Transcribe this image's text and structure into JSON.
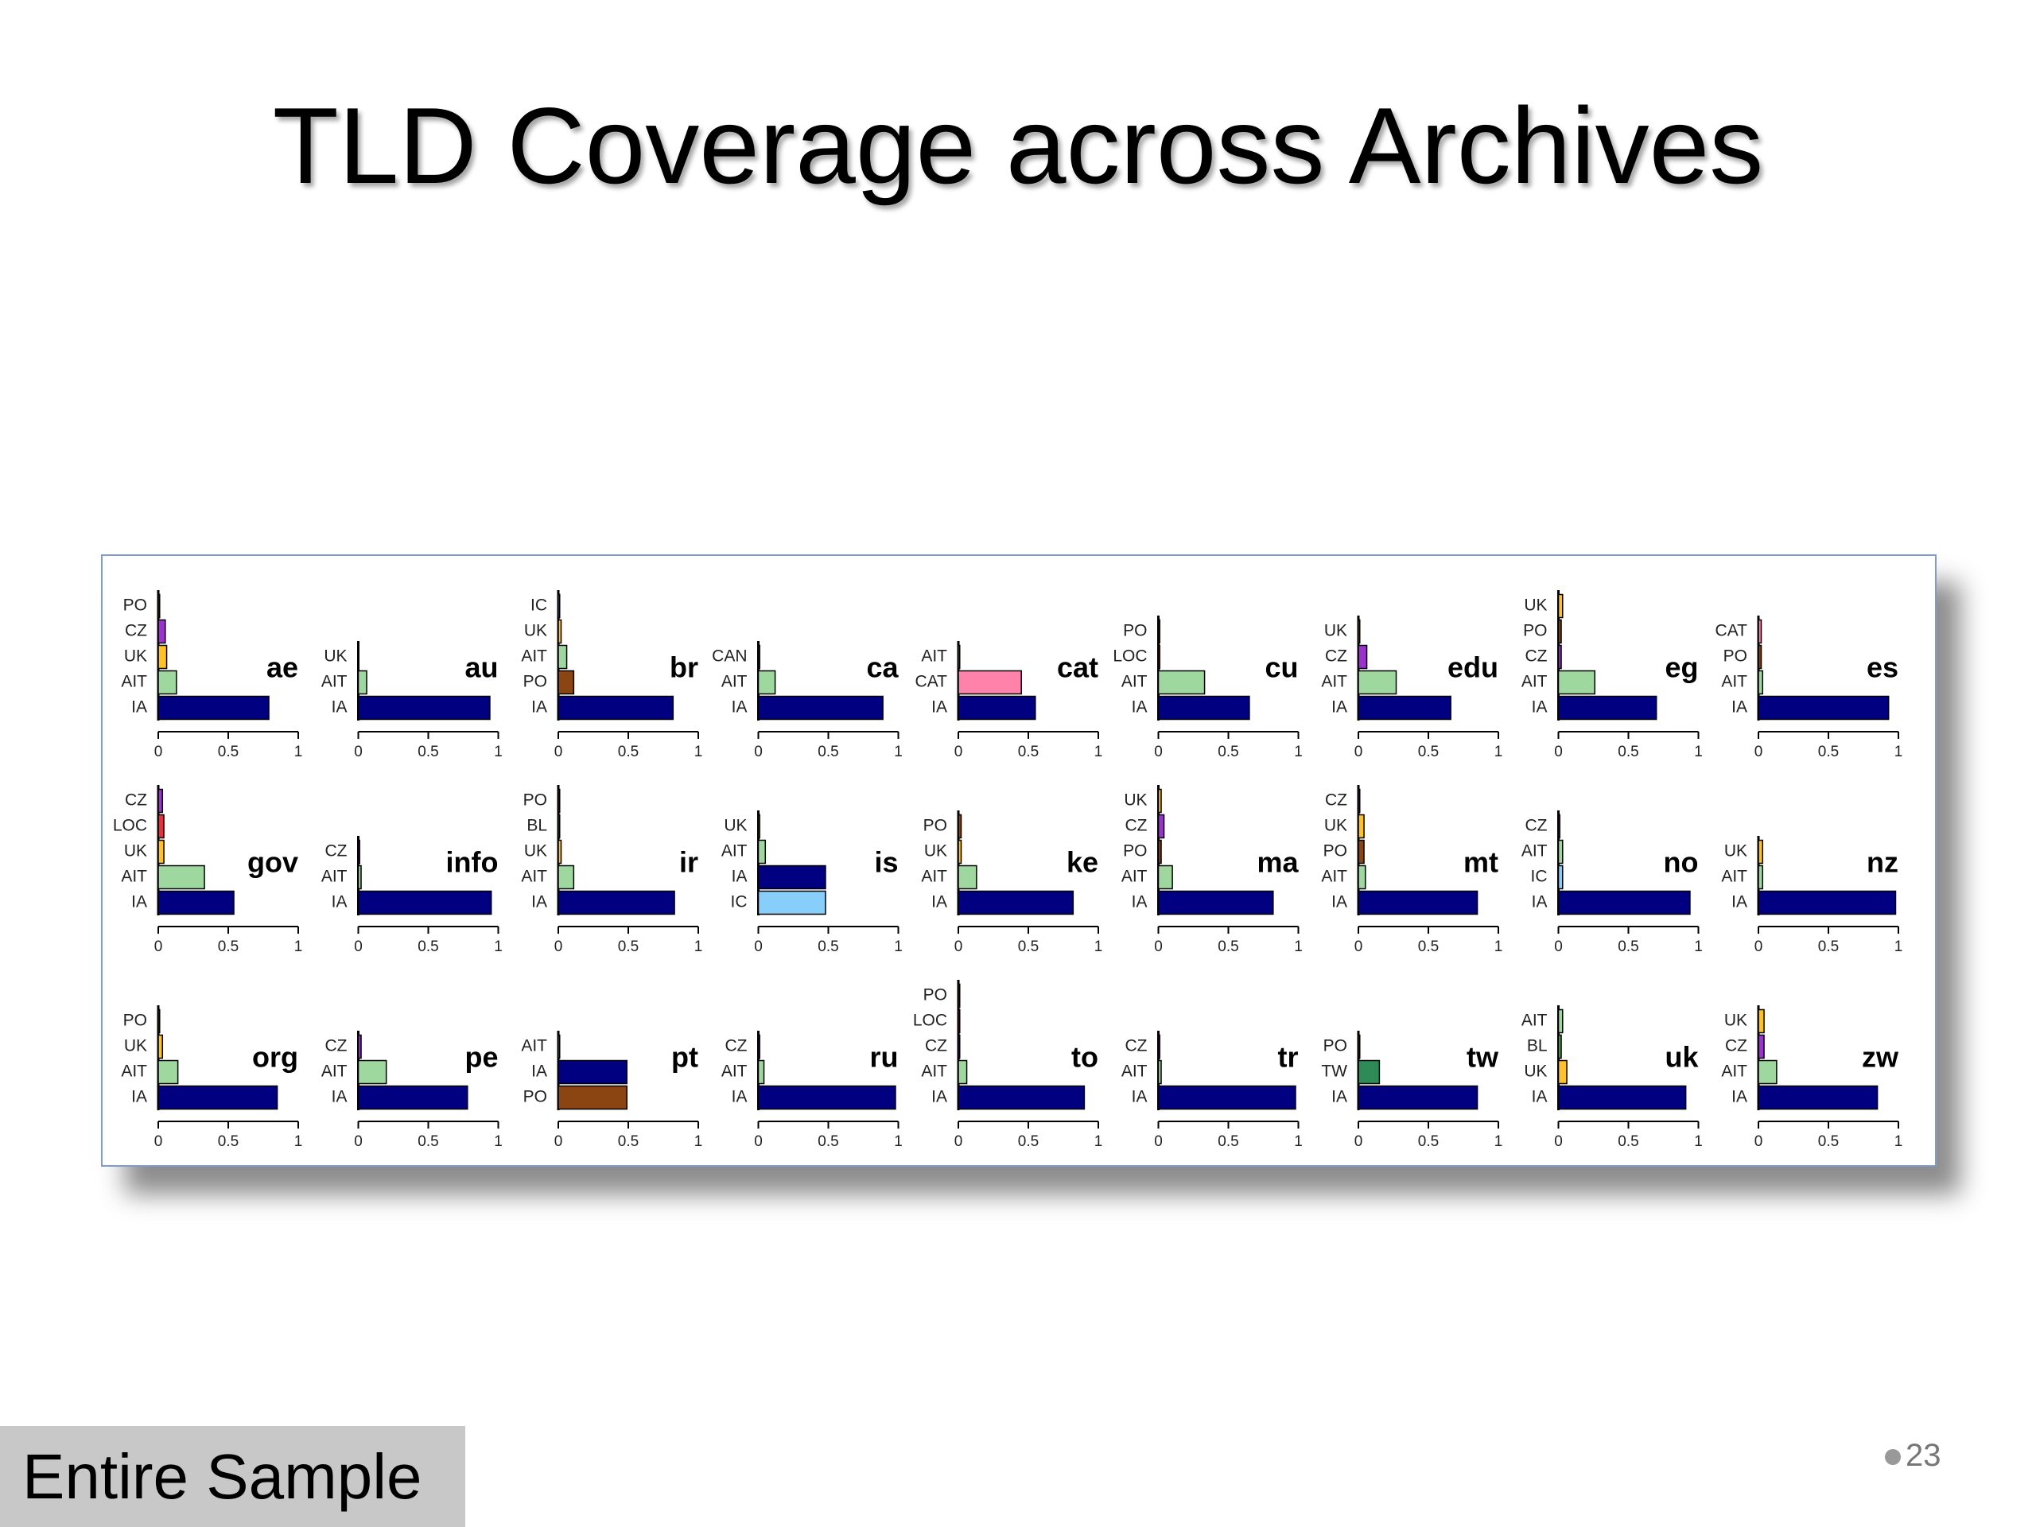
{
  "title": "TLD Coverage across Archives",
  "label": "Entire Sample",
  "page_number": "23",
  "chart_data": [
    {
      "type": "bar",
      "title": "ae",
      "categories": [
        "IA",
        "AIT",
        "UK",
        "CZ",
        "PO"
      ],
      "values": [
        0.79,
        0.13,
        0.06,
        0.05,
        0.01
      ],
      "colors": [
        "#000080",
        "#9fd89f",
        "#ffc125",
        "#9a32cd",
        "#8b4513"
      ],
      "xlim": [
        0,
        1
      ],
      "xticks": [
        0,
        0.5,
        1
      ]
    },
    {
      "type": "bar",
      "title": "au",
      "categories": [
        "IA",
        "AIT",
        "UK"
      ],
      "values": [
        0.94,
        0.06,
        0
      ],
      "colors": [
        "#000080",
        "#9fd89f",
        "#ffc125"
      ],
      "xlim": [
        0,
        1
      ],
      "xticks": [
        0,
        0.5,
        1
      ]
    },
    {
      "type": "bar",
      "title": "br",
      "categories": [
        "IA",
        "PO",
        "AIT",
        "UK",
        "IC"
      ],
      "values": [
        0.82,
        0.11,
        0.06,
        0.02,
        0.01
      ],
      "colors": [
        "#000080",
        "#8b4513",
        "#9fd89f",
        "#ffc125",
        "#87cefa"
      ],
      "xlim": [
        0,
        1
      ],
      "xticks": [
        0,
        0.5,
        1
      ]
    },
    {
      "type": "bar",
      "title": "ca",
      "categories": [
        "IA",
        "AIT",
        "CAN"
      ],
      "values": [
        0.89,
        0.12,
        0.01
      ],
      "colors": [
        "#000080",
        "#9fd89f",
        "#666666"
      ],
      "xlim": [
        0,
        1
      ],
      "xticks": [
        0,
        0.5,
        1
      ]
    },
    {
      "type": "bar",
      "title": "cat",
      "categories": [
        "IA",
        "CAT",
        "AIT"
      ],
      "values": [
        0.55,
        0.45,
        0.01
      ],
      "colors": [
        "#000080",
        "#ff82ab",
        "#9fd89f"
      ],
      "xlim": [
        0,
        1
      ],
      "xticks": [
        0,
        0.5,
        1
      ]
    },
    {
      "type": "bar",
      "title": "cu",
      "categories": [
        "IA",
        "AIT",
        "LOC",
        "PO"
      ],
      "values": [
        0.65,
        0.33,
        0.01,
        0.01
      ],
      "colors": [
        "#000080",
        "#9fd89f",
        "#e8303a",
        "#8b4513"
      ],
      "xlim": [
        0,
        1
      ],
      "xticks": [
        0,
        0.5,
        1
      ]
    },
    {
      "type": "bar",
      "title": "edu",
      "categories": [
        "IA",
        "AIT",
        "CZ",
        "UK"
      ],
      "values": [
        0.66,
        0.27,
        0.06,
        0.01
      ],
      "colors": [
        "#000080",
        "#9fd89f",
        "#9a32cd",
        "#ffc125"
      ],
      "xlim": [
        0,
        1
      ],
      "xticks": [
        0,
        0.5,
        1
      ]
    },
    {
      "type": "bar",
      "title": "eg",
      "categories": [
        "IA",
        "AIT",
        "CZ",
        "PO",
        "UK"
      ],
      "values": [
        0.7,
        0.26,
        0.02,
        0.02,
        0.03
      ],
      "colors": [
        "#000080",
        "#9fd89f",
        "#9a32cd",
        "#8b4513",
        "#ffc125"
      ],
      "xlim": [
        0,
        1
      ],
      "xticks": [
        0,
        0.5,
        1
      ]
    },
    {
      "type": "bar",
      "title": "es",
      "categories": [
        "IA",
        "AIT",
        "PO",
        "CAT"
      ],
      "values": [
        0.93,
        0.03,
        0.02,
        0.02
      ],
      "colors": [
        "#000080",
        "#9fd89f",
        "#8b4513",
        "#ff82ab"
      ],
      "xlim": [
        0,
        1
      ],
      "xticks": [
        0,
        0.5,
        1
      ]
    },
    {
      "type": "bar",
      "title": "gov",
      "categories": [
        "IA",
        "AIT",
        "UK",
        "LOC",
        "CZ"
      ],
      "values": [
        0.54,
        0.33,
        0.04,
        0.04,
        0.03
      ],
      "colors": [
        "#000080",
        "#9fd89f",
        "#ffc125",
        "#e8303a",
        "#9a32cd"
      ],
      "xlim": [
        0,
        1
      ],
      "xticks": [
        0,
        0.5,
        1
      ]
    },
    {
      "type": "bar",
      "title": "info",
      "categories": [
        "IA",
        "AIT",
        "CZ"
      ],
      "values": [
        0.95,
        0.02,
        0.01
      ],
      "colors": [
        "#000080",
        "#9fd89f",
        "#9a32cd"
      ],
      "xlim": [
        0,
        1
      ],
      "xticks": [
        0,
        0.5,
        1
      ]
    },
    {
      "type": "bar",
      "title": "ir",
      "categories": [
        "IA",
        "AIT",
        "UK",
        "BL",
        "PO"
      ],
      "values": [
        0.83,
        0.11,
        0.02,
        0.01,
        0.01
      ],
      "colors": [
        "#000080",
        "#9fd89f",
        "#ffc125",
        "#4daf4a",
        "#8b4513"
      ],
      "xlim": [
        0,
        1
      ],
      "xticks": [
        0,
        0.5,
        1
      ]
    },
    {
      "type": "bar",
      "title": "is",
      "categories": [
        "IC",
        "IA",
        "AIT",
        "UK"
      ],
      "values": [
        0.48,
        0.48,
        0.05,
        0.01
      ],
      "colors": [
        "#87cefa",
        "#000080",
        "#9fd89f",
        "#ffc125"
      ],
      "xlim": [
        0,
        1
      ],
      "xticks": [
        0,
        0.5,
        1
      ]
    },
    {
      "type": "bar",
      "title": "ke",
      "categories": [
        "IA",
        "AIT",
        "UK",
        "PO"
      ],
      "values": [
        0.82,
        0.13,
        0.02,
        0.02
      ],
      "colors": [
        "#000080",
        "#9fd89f",
        "#ffc125",
        "#8b4513"
      ],
      "xlim": [
        0,
        1
      ],
      "xticks": [
        0,
        0.5,
        1
      ]
    },
    {
      "type": "bar",
      "title": "ma",
      "categories": [
        "IA",
        "AIT",
        "PO",
        "CZ",
        "UK"
      ],
      "values": [
        0.82,
        0.1,
        0.02,
        0.04,
        0.02
      ],
      "colors": [
        "#000080",
        "#9fd89f",
        "#8b4513",
        "#9a32cd",
        "#ffc125"
      ],
      "xlim": [
        0,
        1
      ],
      "xticks": [
        0,
        0.5,
        1
      ]
    },
    {
      "type": "bar",
      "title": "mt",
      "categories": [
        "IA",
        "AIT",
        "PO",
        "UK",
        "CZ"
      ],
      "values": [
        0.85,
        0.05,
        0.04,
        0.04,
        0.01
      ],
      "colors": [
        "#000080",
        "#9fd89f",
        "#8b4513",
        "#ffc125",
        "#9a32cd"
      ],
      "xlim": [
        0,
        1
      ],
      "xticks": [
        0,
        0.5,
        1
      ]
    },
    {
      "type": "bar",
      "title": "no",
      "categories": [
        "IA",
        "IC",
        "AIT",
        "CZ"
      ],
      "values": [
        0.94,
        0.03,
        0.03,
        0.01
      ],
      "colors": [
        "#000080",
        "#87cefa",
        "#9fd89f",
        "#9a32cd"
      ],
      "xlim": [
        0,
        1
      ],
      "xticks": [
        0,
        0.5,
        1
      ]
    },
    {
      "type": "bar",
      "title": "nz",
      "categories": [
        "IA",
        "AIT",
        "UK"
      ],
      "values": [
        0.98,
        0.03,
        0.03
      ],
      "colors": [
        "#000080",
        "#9fd89f",
        "#ffc125"
      ],
      "xlim": [
        0,
        1
      ],
      "xticks": [
        0,
        0.5,
        1
      ]
    },
    {
      "type": "bar",
      "title": "org",
      "categories": [
        "IA",
        "AIT",
        "UK",
        "PO"
      ],
      "values": [
        0.85,
        0.14,
        0.03,
        0.01
      ],
      "colors": [
        "#000080",
        "#9fd89f",
        "#ffc125",
        "#8b4513"
      ],
      "xlim": [
        0,
        1
      ],
      "xticks": [
        0,
        0.5,
        1
      ]
    },
    {
      "type": "bar",
      "title": "pe",
      "categories": [
        "IA",
        "AIT",
        "CZ"
      ],
      "values": [
        0.78,
        0.2,
        0.02
      ],
      "colors": [
        "#000080",
        "#9fd89f",
        "#9a32cd"
      ],
      "xlim": [
        0,
        1
      ],
      "xticks": [
        0,
        0.5,
        1
      ]
    },
    {
      "type": "bar",
      "title": "pt",
      "categories": [
        "PO",
        "IA",
        "AIT"
      ],
      "values": [
        0.49,
        0.49,
        0.01
      ],
      "colors": [
        "#8b4513",
        "#000080",
        "#9fd89f"
      ],
      "xlim": [
        0,
        1
      ],
      "xticks": [
        0,
        0.5,
        1
      ]
    },
    {
      "type": "bar",
      "title": "ru",
      "categories": [
        "IA",
        "AIT",
        "CZ"
      ],
      "values": [
        0.98,
        0.04,
        0.01
      ],
      "colors": [
        "#000080",
        "#9fd89f",
        "#9a32cd"
      ],
      "xlim": [
        0,
        1
      ],
      "xticks": [
        0,
        0.5,
        1
      ]
    },
    {
      "type": "bar",
      "title": "to",
      "categories": [
        "IA",
        "AIT",
        "CZ",
        "LOC",
        "PO"
      ],
      "values": [
        0.9,
        0.06,
        0.01,
        0.01,
        0.01
      ],
      "colors": [
        "#000080",
        "#9fd89f",
        "#9a32cd",
        "#e8303a",
        "#8b4513"
      ],
      "xlim": [
        0,
        1
      ],
      "xticks": [
        0,
        0.5,
        1
      ]
    },
    {
      "type": "bar",
      "title": "tr",
      "categories": [
        "IA",
        "AIT",
        "CZ"
      ],
      "values": [
        0.98,
        0.02,
        0.01
      ],
      "colors": [
        "#000080",
        "#9fd89f",
        "#9a32cd"
      ],
      "xlim": [
        0,
        1
      ],
      "xticks": [
        0,
        0.5,
        1
      ]
    },
    {
      "type": "bar",
      "title": "tw",
      "categories": [
        "IA",
        "TW",
        "PO"
      ],
      "values": [
        0.85,
        0.15,
        0.01
      ],
      "colors": [
        "#000080",
        "#2e8b57",
        "#8b4513"
      ],
      "xlim": [
        0,
        1
      ],
      "xticks": [
        0,
        0.5,
        1
      ]
    },
    {
      "type": "bar",
      "title": "uk",
      "categories": [
        "IA",
        "UK",
        "BL",
        "AIT"
      ],
      "values": [
        0.91,
        0.06,
        0.02,
        0.03
      ],
      "colors": [
        "#000080",
        "#ffc125",
        "#4daf4a",
        "#9fd89f"
      ],
      "xlim": [
        0,
        1
      ],
      "xticks": [
        0,
        0.5,
        1
      ]
    },
    {
      "type": "bar",
      "title": "zw",
      "categories": [
        "IA",
        "AIT",
        "CZ",
        "UK"
      ],
      "values": [
        0.85,
        0.13,
        0.04,
        0.04
      ],
      "colors": [
        "#000080",
        "#9fd89f",
        "#9a32cd",
        "#ffc125"
      ],
      "xlim": [
        0,
        1
      ],
      "xticks": [
        0,
        0.5,
        1
      ]
    }
  ]
}
